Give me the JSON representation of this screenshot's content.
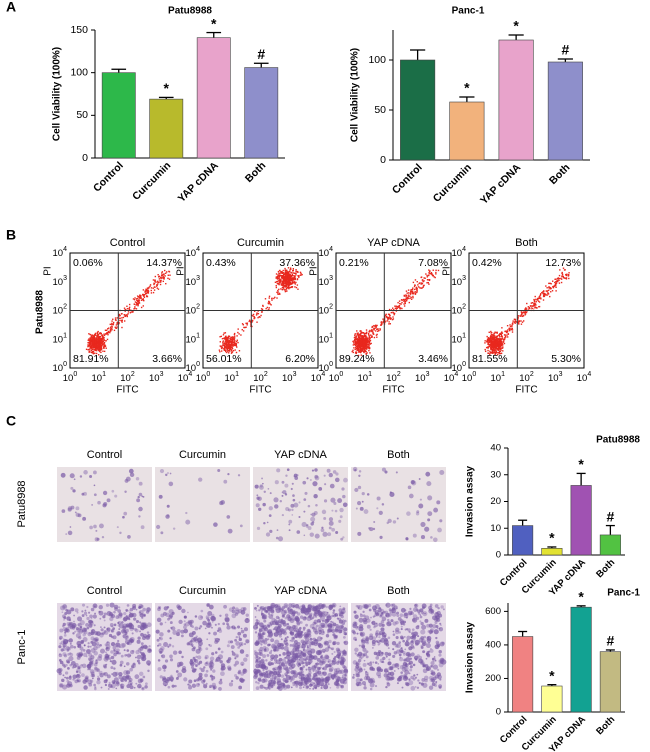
{
  "panel_labels": [
    "A",
    "B",
    "C"
  ],
  "chart_data": [
    {
      "type": "bar",
      "title": "Patu8988",
      "ylabel": "Cell Viability (100%)",
      "categories": [
        "Control",
        "Curcumin",
        "YAP cDNA",
        "Both"
      ],
      "values": [
        100,
        69,
        141,
        106
      ],
      "errors": [
        4,
        2,
        6,
        5
      ],
      "annotations": [
        null,
        "*",
        "*",
        "#"
      ],
      "colors": [
        "#2db84a",
        "#b8ba2c",
        "#e8a3cb",
        "#8e8fcb"
      ],
      "ylim": [
        0,
        150
      ],
      "yticks": [
        0,
        50,
        100,
        150
      ]
    },
    {
      "type": "bar",
      "title": "Panc-1",
      "ylabel": "Cell Viability (100%)",
      "categories": [
        "Control",
        "Curcumin",
        "YAP cDNA",
        "Both"
      ],
      "values": [
        100,
        58,
        120,
        98
      ],
      "errors": [
        10,
        5,
        5,
        3
      ],
      "annotations": [
        null,
        "*",
        "*",
        "#"
      ],
      "colors": [
        "#1b6e47",
        "#f2b27c",
        "#e8a3cb",
        "#8e8fcb"
      ],
      "ylim": [
        0,
        130
      ],
      "yticks": [
        0,
        50,
        100
      ]
    },
    {
      "type": "bar",
      "title": "Patu8988",
      "ylabel": "Invasion assay",
      "categories": [
        "Control",
        "Curcumin",
        "YAP cDNA",
        "Both"
      ],
      "values": [
        11,
        2.5,
        26,
        7.5
      ],
      "errors": [
        2,
        0.5,
        4.5,
        3.5
      ],
      "annotations": [
        null,
        "*",
        "*",
        "#"
      ],
      "colors": [
        "#5060c0",
        "#e2e232",
        "#a052b2",
        "#52c242"
      ],
      "ylim": [
        0,
        40
      ],
      "yticks": [
        0,
        10,
        20,
        30,
        40
      ]
    },
    {
      "type": "bar",
      "title": "Panc-1",
      "ylabel": "Invasion assay",
      "categories": [
        "Control",
        "Curcumin",
        "YAP cDNA",
        "Both"
      ],
      "values": [
        450,
        155,
        625,
        360
      ],
      "errors": [
        30,
        8,
        8,
        10
      ],
      "annotations": [
        null,
        "*",
        "*",
        "#"
      ],
      "colors": [
        "#f08282",
        "#ffff94",
        "#12a292",
        "#c2ba82"
      ],
      "ylim": [
        0,
        650
      ],
      "yticks": [
        0,
        200,
        400,
        600
      ]
    }
  ],
  "flow": {
    "row_label": "Patu8988",
    "xlabel": "FITC",
    "ylabel": "PI",
    "ticks": [
      {
        "base": "10",
        "exp": "0"
      },
      {
        "base": "10",
        "exp": "1"
      },
      {
        "base": "10",
        "exp": "2"
      },
      {
        "base": "10",
        "exp": "3"
      },
      {
        "base": "10",
        "exp": "4"
      }
    ],
    "plots": [
      {
        "title": "Control",
        "quadrants": [
          "0.06%",
          "14.37%",
          "81.91%",
          "3.66%"
        ]
      },
      {
        "title": "Curcumin",
        "quadrants": [
          "0.43%",
          "37.36%",
          "56.01%",
          "6.20%"
        ]
      },
      {
        "title": "YAP cDNA",
        "quadrants": [
          "0.21%",
          "7.08%",
          "89.24%",
          "3.46%"
        ]
      },
      {
        "title": "Both",
        "quadrants": [
          "0.42%",
          "12.73%",
          "81.55%",
          "5.30%"
        ]
      }
    ]
  },
  "invasion": {
    "rows": [
      {
        "label": "Patu8988",
        "columns": [
          "Control",
          "Curcumin",
          "YAP cDNA",
          "Both"
        ]
      },
      {
        "label": "Panc-1",
        "columns": [
          "Control",
          "Curcumin",
          "YAP cDNA",
          "Both"
        ]
      }
    ]
  }
}
